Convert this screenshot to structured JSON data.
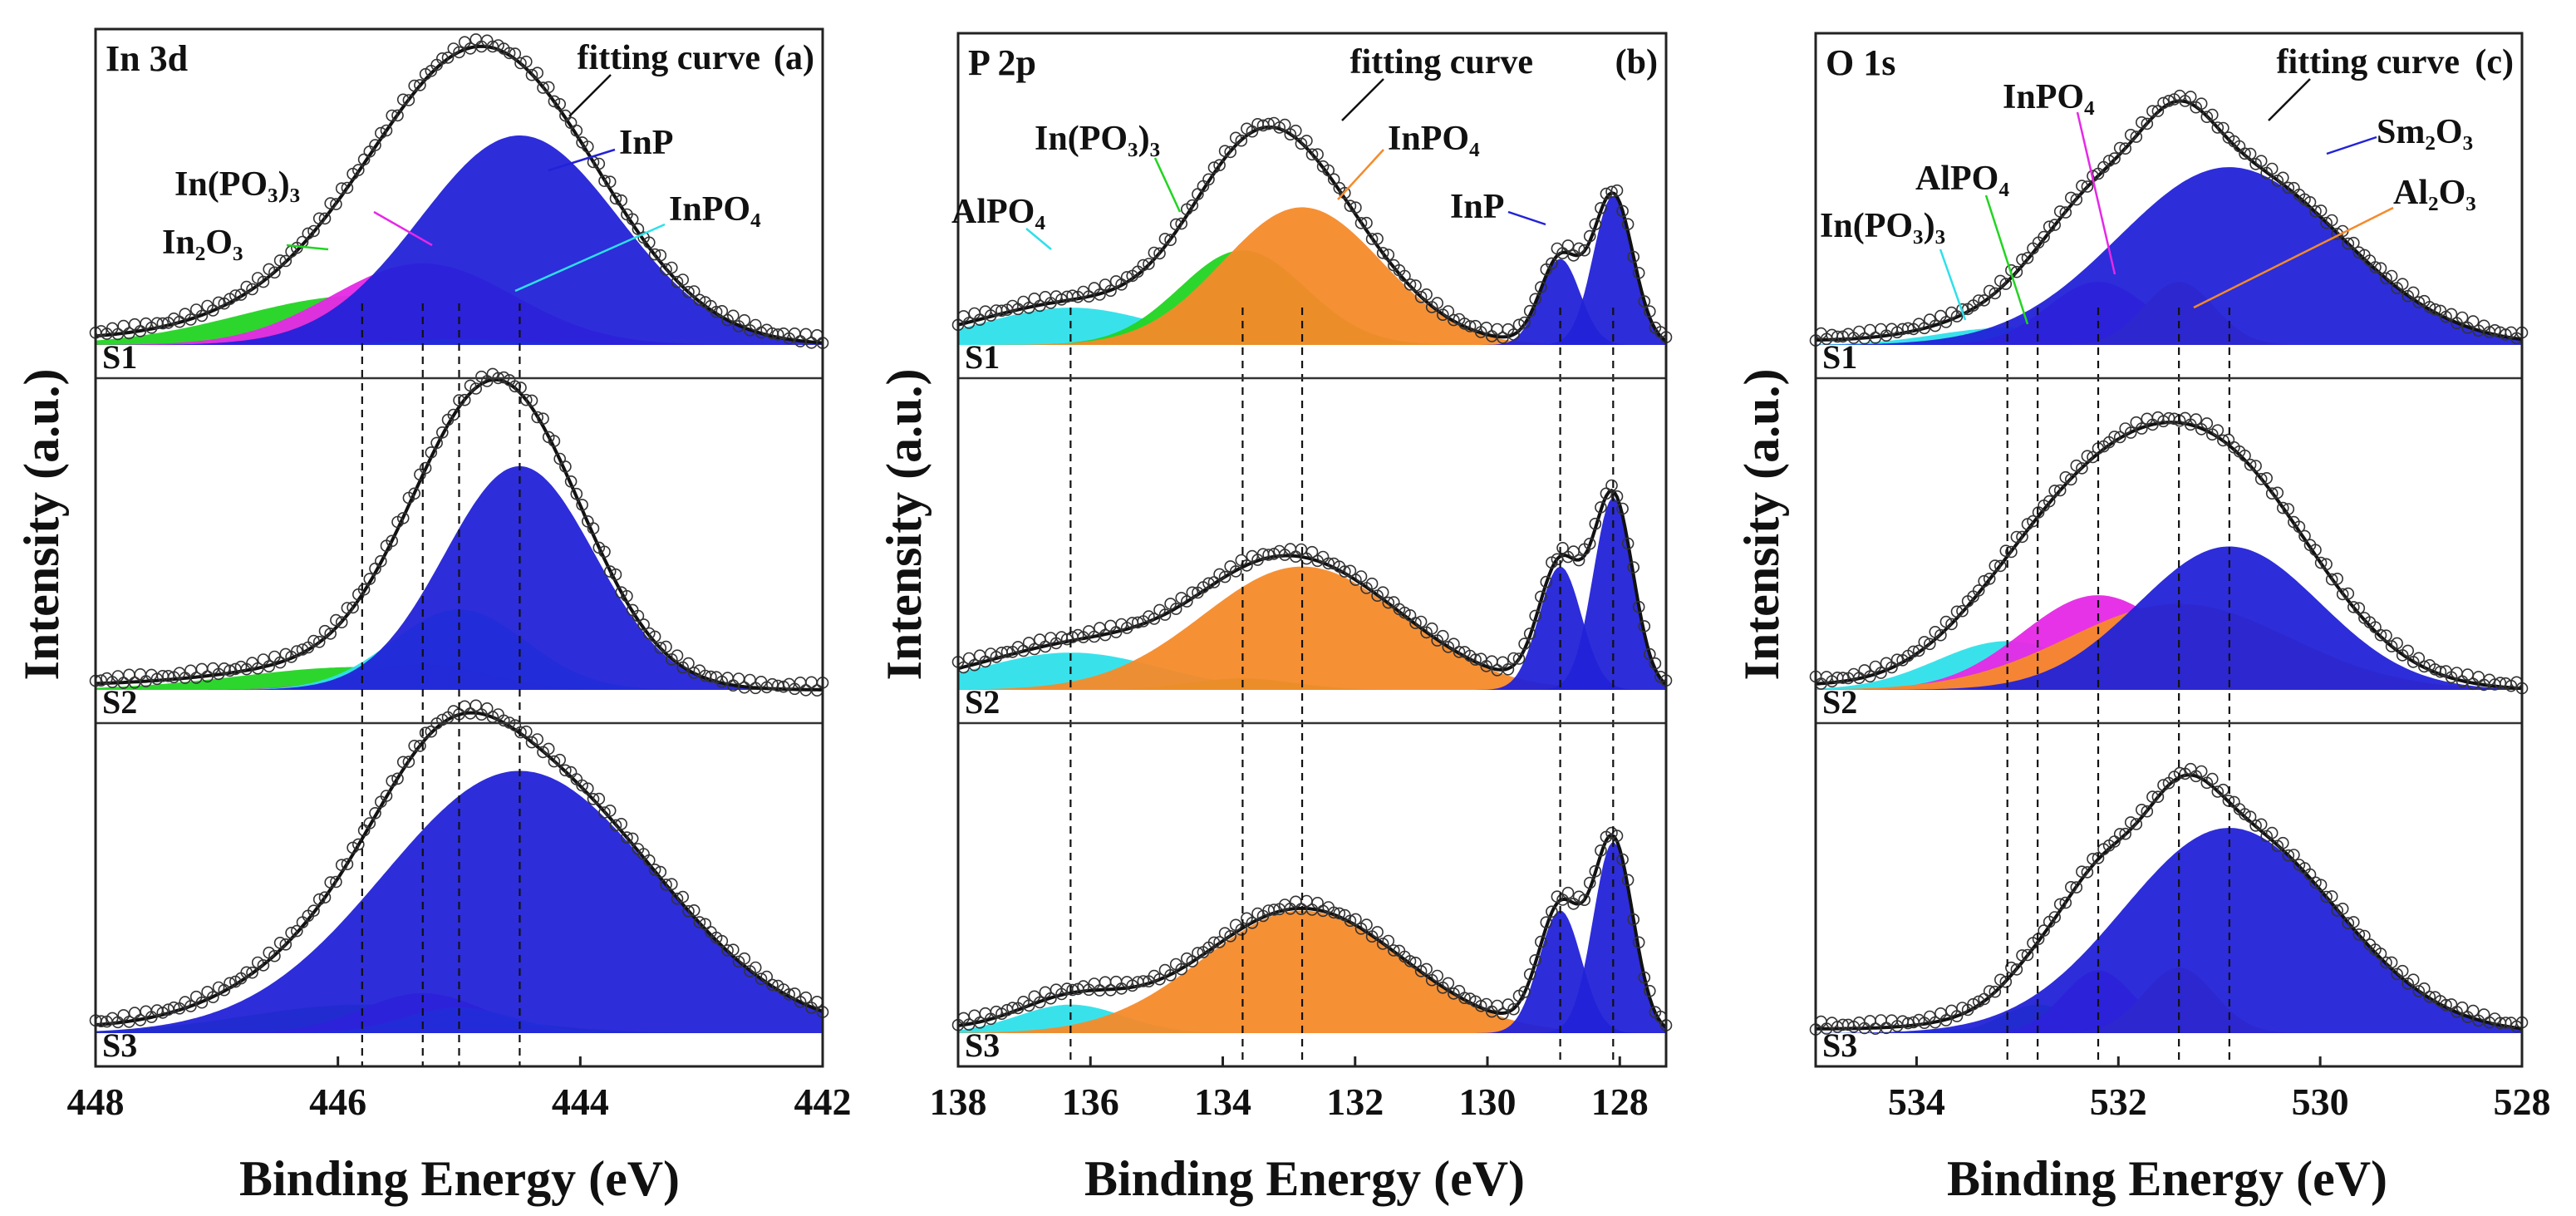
{
  "figure": {
    "ylabel": "Intensity (a.u.)",
    "xlabel": "Binding Energy (eV)",
    "fit_label": "fitting curve",
    "samples": [
      "S1",
      "S2",
      "S3"
    ]
  },
  "colors": {
    "green": "#22d422",
    "magenta": "#e628e6",
    "blue": "#2222d8",
    "cyan": "#2ee0ea",
    "orange": "#f58a2a",
    "fit": "#111111",
    "points": "#333333"
  },
  "chart_data": [
    {
      "type": "area",
      "id": "a",
      "panel_label": "(a)",
      "title": "In 3d",
      "xlabel": "Binding Energy (eV)",
      "ylabel": "Intensity (a.u.)",
      "xlim": [
        448,
        442
      ],
      "xticks": [
        "448",
        "446",
        "444",
        "442"
      ],
      "xtick_values": [
        448,
        446,
        444,
        442
      ],
      "reference_lines": [
        445.8,
        445.3,
        445.0,
        444.5
      ],
      "component_labels": {
        "In2O3": "In₂O₃",
        "InPO3": "In(PO₃)₃",
        "InP": "InP",
        "InPO4": "InPO₄"
      },
      "rows": [
        {
          "sample": "S1",
          "components": [
            {
              "name": "In2O3",
              "color": "green",
              "center": 445.8,
              "width": 1.0,
              "amp": 0.17
            },
            {
              "name": "InPO3",
              "color": "magenta",
              "center": 445.3,
              "width": 0.75,
              "amp": 0.28
            },
            {
              "name": "InPO4",
              "color": "cyan",
              "center": 445.0,
              "width": 0.5,
              "amp": 0.02
            },
            {
              "name": "InP",
              "color": "blue",
              "center": 444.5,
              "width": 0.82,
              "amp": 0.72
            }
          ]
        },
        {
          "sample": "S2",
          "components": [
            {
              "name": "In2O3",
              "color": "green",
              "center": 445.8,
              "width": 1.0,
              "amp": 0.08
            },
            {
              "name": "InPO3",
              "color": "magenta",
              "center": 445.3,
              "width": 0.55,
              "amp": 0.09
            },
            {
              "name": "InPO4",
              "color": "cyan",
              "center": 445.0,
              "width": 0.55,
              "amp": 0.28
            },
            {
              "name": "InP",
              "color": "blue",
              "center": 444.5,
              "width": 0.62,
              "amp": 0.78
            }
          ]
        },
        {
          "sample": "S3",
          "components": [
            {
              "name": "In2O3",
              "color": "green",
              "center": 445.8,
              "width": 0.95,
              "amp": 0.1
            },
            {
              "name": "InPO3",
              "color": "magenta",
              "center": 445.3,
              "width": 0.5,
              "amp": 0.14
            },
            {
              "name": "InPO4",
              "color": "cyan",
              "center": 445.0,
              "width": 0.45,
              "amp": 0.09
            },
            {
              "name": "InP",
              "color": "blue",
              "center": 444.5,
              "width": 1.12,
              "amp": 0.92
            }
          ]
        }
      ]
    },
    {
      "type": "area",
      "id": "b",
      "panel_label": "(b)",
      "title": "P 2p",
      "xlabel": "Binding Energy (eV)",
      "ylabel": "Intensity (a.u.)",
      "xlim": [
        138,
        127.3
      ],
      "xticks": [
        "138",
        "136",
        "134",
        "132",
        "130",
        "128"
      ],
      "xtick_values": [
        138,
        136,
        134,
        132,
        130,
        128
      ],
      "reference_lines": [
        136.3,
        133.7,
        132.8,
        128.9,
        128.1
      ],
      "component_labels": {
        "AlPO4": "AlPO₄",
        "InPO3": "In(PO₃)₃",
        "InPO4": "InPO₄",
        "InP": "InP"
      },
      "rows": [
        {
          "sample": "S1",
          "components": [
            {
              "name": "AlPO4",
              "color": "cyan",
              "center": 136.3,
              "width": 1.3,
              "amp": 0.13
            },
            {
              "name": "InPO3",
              "color": "green",
              "center": 133.7,
              "width": 0.95,
              "amp": 0.33
            },
            {
              "name": "InPO4",
              "color": "orange",
              "center": 132.8,
              "width": 1.2,
              "amp": 0.48
            },
            {
              "name": "InP",
              "color": "blue",
              "center": 128.9,
              "width": 0.3,
              "amp": 0.3
            },
            {
              "name": "InP",
              "color": "blue",
              "center": 128.1,
              "width": 0.3,
              "amp": 0.52
            }
          ]
        },
        {
          "sample": "S2",
          "components": [
            {
              "name": "AlPO4",
              "color": "cyan",
              "center": 136.3,
              "width": 1.35,
              "amp": 0.13
            },
            {
              "name": "InPO3",
              "color": "green",
              "center": 133.7,
              "width": 0.8,
              "amp": 0.04
            },
            {
              "name": "InPO4",
              "color": "orange",
              "center": 132.8,
              "width": 1.5,
              "amp": 0.43
            },
            {
              "name": "InP",
              "color": "blue",
              "center": 128.9,
              "width": 0.32,
              "amp": 0.43
            },
            {
              "name": "InP",
              "color": "blue",
              "center": 128.1,
              "width": 0.3,
              "amp": 0.67
            }
          ]
        },
        {
          "sample": "S3",
          "components": [
            {
              "name": "AlPO4",
              "color": "cyan",
              "center": 136.3,
              "width": 0.8,
              "amp": 0.1
            },
            {
              "name": "InPO3",
              "color": "green",
              "center": 133.7,
              "width": 0.5,
              "amp": 0.0
            },
            {
              "name": "InPO4",
              "color": "orange",
              "center": 132.8,
              "width": 1.5,
              "amp": 0.43
            },
            {
              "name": "InP",
              "color": "blue",
              "center": 128.9,
              "width": 0.32,
              "amp": 0.43
            },
            {
              "name": "InP",
              "color": "blue",
              "center": 128.1,
              "width": 0.3,
              "amp": 0.67
            }
          ]
        }
      ]
    },
    {
      "type": "area",
      "id": "c",
      "panel_label": "(c)",
      "title": "O 1s",
      "xlabel": "Binding Energy (eV)",
      "ylabel": "Intensity (a.u.)",
      "xlim": [
        535,
        528
      ],
      "xticks": [
        "534",
        "532",
        "530",
        "528"
      ],
      "xtick_values": [
        534,
        532,
        530,
        528
      ],
      "reference_lines": [
        533.1,
        532.8,
        532.2,
        531.4,
        530.9
      ],
      "component_labels": {
        "InPO3": "In(PO₃)₃",
        "AlPO4": "AlPO₄",
        "InPO4": "InPO₄",
        "Sm2O3": "Sm₂O₃",
        "Al2O3": "Al₂O₃"
      },
      "rows": [
        {
          "sample": "S1",
          "components": [
            {
              "name": "InPO3",
              "color": "cyan",
              "center": 533.1,
              "width": 0.7,
              "amp": 0.06
            },
            {
              "name": "AlPO4",
              "color": "green",
              "center": 532.8,
              "width": 0.4,
              "amp": 0.03
            },
            {
              "name": "InPO4",
              "color": "magenta",
              "center": 532.2,
              "width": 0.5,
              "amp": 0.22
            },
            {
              "name": "Al2O3",
              "color": "orange",
              "center": 531.4,
              "width": 0.35,
              "amp": 0.22
            },
            {
              "name": "Sm2O3",
              "color": "blue",
              "center": 530.9,
              "width": 1.1,
              "amp": 0.62
            }
          ]
        },
        {
          "sample": "S2",
          "components": [
            {
              "name": "InPO3",
              "color": "cyan",
              "center": 533.1,
              "width": 0.7,
              "amp": 0.17
            },
            {
              "name": "AlPO4",
              "color": "green",
              "center": 532.8,
              "width": 0.5,
              "amp": 0.01
            },
            {
              "name": "InPO4",
              "color": "magenta",
              "center": 532.2,
              "width": 0.75,
              "amp": 0.33
            },
            {
              "name": "Al2O3",
              "color": "orange",
              "center": 531.4,
              "width": 1.1,
              "amp": 0.3
            },
            {
              "name": "Sm2O3",
              "color": "blue",
              "center": 530.9,
              "width": 0.9,
              "amp": 0.5
            }
          ]
        },
        {
          "sample": "S3",
          "components": [
            {
              "name": "InPO3",
              "color": "cyan",
              "center": 533.1,
              "width": 0.6,
              "amp": 0.02
            },
            {
              "name": "AlPO4",
              "color": "green",
              "center": 532.8,
              "width": 0.35,
              "amp": 0.1
            },
            {
              "name": "InPO4",
              "color": "magenta",
              "center": 532.2,
              "width": 0.35,
              "amp": 0.22
            },
            {
              "name": "Al2O3",
              "color": "orange",
              "center": 531.4,
              "width": 0.35,
              "amp": 0.23
            },
            {
              "name": "Sm2O3",
              "color": "blue",
              "center": 530.9,
              "width": 1.05,
              "amp": 0.72
            }
          ]
        }
      ]
    }
  ]
}
